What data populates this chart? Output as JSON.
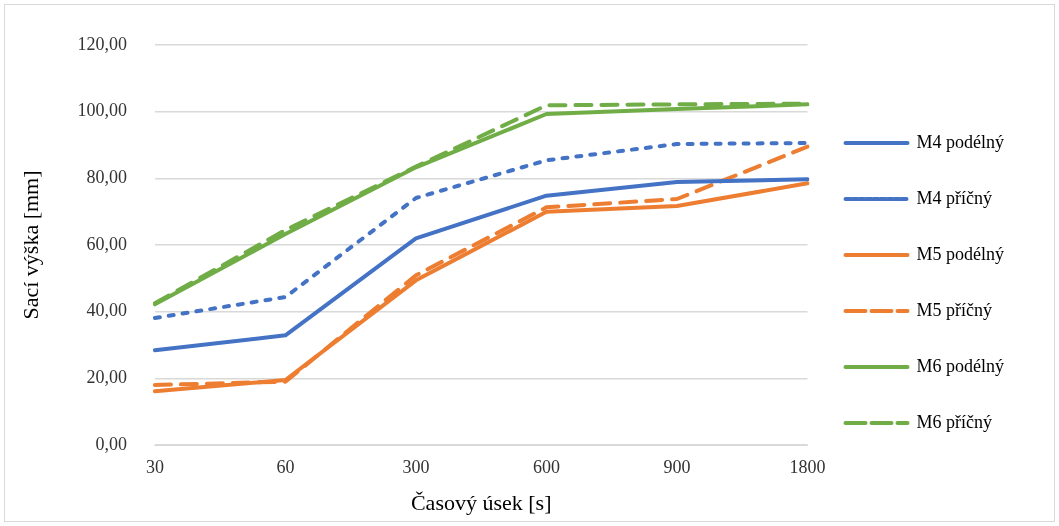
{
  "chart_data": {
    "type": "line",
    "xlabel": "Časový úsek [s]",
    "ylabel": "Sací výška [mm]",
    "categories": [
      "30",
      "60",
      "300",
      "600",
      "900",
      "1800"
    ],
    "ylim": [
      0,
      120
    ],
    "yticks": [
      {
        "value": 0,
        "label": "0,00"
      },
      {
        "value": 20,
        "label": "20,00"
      },
      {
        "value": 40,
        "label": "40,00"
      },
      {
        "value": 60,
        "label": "60,00"
      },
      {
        "value": 80,
        "label": "80,00"
      },
      {
        "value": 100,
        "label": "100,00"
      },
      {
        "value": 120,
        "label": "120,00"
      }
    ],
    "grid": "y",
    "legend": "right",
    "marker": "none",
    "series": [
      {
        "name": "M4 podélný",
        "color": "#4472c4",
        "line_style": "solid",
        "values": [
          28.4,
          32.9,
          62.0,
          74.8,
          78.9,
          79.7
        ]
      },
      {
        "name": "M4 příčný",
        "color": "#4472c4",
        "line_style": "dotted",
        "values": [
          38.1,
          44.4,
          74.1,
          85.4,
          90.3,
          90.6
        ]
      },
      {
        "name": "M5 podélný",
        "color": "#ed7d31",
        "line_style": "solid",
        "values": [
          16.1,
          19.5,
          49.4,
          70.0,
          71.7,
          78.5
        ]
      },
      {
        "name": "M5 příčný",
        "color": "#ed7d31",
        "line_style": "dashed",
        "values": [
          18.0,
          19.0,
          50.9,
          71.3,
          73.8,
          89.5
        ]
      },
      {
        "name": "M6 podélný",
        "color": "#70ad47",
        "line_style": "solid",
        "values": [
          42.2,
          63.3,
          83.3,
          99.3,
          100.8,
          102.2
        ]
      },
      {
        "name": "M6 příčný",
        "color": "#70ad47",
        "line_style": "dashed",
        "values": [
          42.5,
          64.5,
          83.5,
          101.9,
          102.2,
          102.4
        ]
      }
    ]
  }
}
